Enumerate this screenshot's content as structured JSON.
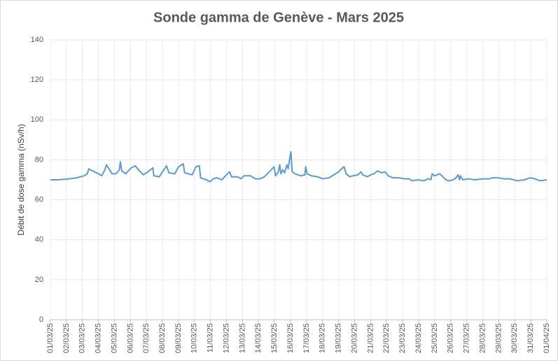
{
  "chart_data": {
    "type": "line",
    "title": "Sonde gamma de Genève - Mars 2025",
    "ylabel": "Débit de dose gamma (nSv/h)",
    "xlim": [
      0,
      31
    ],
    "xticks": [
      {
        "value": 0,
        "label": "01/03/25"
      },
      {
        "value": 1,
        "label": "02/03/25"
      },
      {
        "value": 2,
        "label": "03/03/25"
      },
      {
        "value": 3,
        "label": "04/03/25"
      },
      {
        "value": 4,
        "label": "05/03/25"
      },
      {
        "value": 5,
        "label": "06/03/25"
      },
      {
        "value": 6,
        "label": "07/03/25"
      },
      {
        "value": 7,
        "label": "08/03/25"
      },
      {
        "value": 8,
        "label": "09/03/25"
      },
      {
        "value": 9,
        "label": "10/03/25"
      },
      {
        "value": 10,
        "label": "11/03/25"
      },
      {
        "value": 11,
        "label": "12/03/25"
      },
      {
        "value": 12,
        "label": "13/03/25"
      },
      {
        "value": 13,
        "label": "14/03/25"
      },
      {
        "value": 14,
        "label": "15/03/25"
      },
      {
        "value": 15,
        "label": "16/03/25"
      },
      {
        "value": 16,
        "label": "17/03/25"
      },
      {
        "value": 17,
        "label": "18/03/25"
      },
      {
        "value": 18,
        "label": "19/03/25"
      },
      {
        "value": 19,
        "label": "20/03/25"
      },
      {
        "value": 20,
        "label": "21/03/25"
      },
      {
        "value": 21,
        "label": "22/03/25"
      },
      {
        "value": 22,
        "label": "23/03/25"
      },
      {
        "value": 23,
        "label": "24/03/25"
      },
      {
        "value": 24,
        "label": "25/03/25"
      },
      {
        "value": 25,
        "label": "26/03/25"
      },
      {
        "value": 26,
        "label": "27/03/25"
      },
      {
        "value": 27,
        "label": "28/03/25"
      },
      {
        "value": 28,
        "label": "29/03/25"
      },
      {
        "value": 29,
        "label": "30/03/25"
      },
      {
        "value": 30,
        "label": "31/03/25"
      },
      {
        "value": 31,
        "label": "01/04/25"
      }
    ],
    "ylim": [
      0,
      140
    ],
    "yticks": [
      0,
      20,
      40,
      60,
      80,
      100,
      120,
      140
    ],
    "grid": true,
    "color": "#5b9bd5",
    "x": [
      0,
      0.5,
      1.2,
      1.65,
      2.1,
      2.3,
      2.4,
      2.5,
      3,
      3.2,
      3.4,
      3.5,
      3.85,
      4.1,
      4.3,
      4.37,
      4.45,
      4.7,
      5.05,
      5.3,
      5.5,
      5.8,
      6.1,
      6.4,
      6.46,
      6.8,
      7.0,
      7.25,
      7.4,
      7.77,
      8.0,
      8.3,
      8.38,
      8.86,
      9.08,
      9.3,
      9.38,
      9.74,
      9.96,
      10.18,
      10.4,
      10.7,
      11.0,
      11.18,
      11.31,
      11.7,
      11.9,
      12.1,
      12.5,
      12.8,
      13.1,
      13.36,
      13.67,
      13.97,
      14.06,
      14.24,
      14.32,
      14.4,
      14.5,
      14.63,
      14.76,
      14.85,
      14.93,
      15.02,
      15.1,
      15.28,
      15.63,
      15.9,
      15.94,
      16.03,
      16.3,
      16.7,
      17.0,
      17.4,
      17.7,
      18.0,
      18.25,
      18.34,
      18.47,
      18.7,
      18.9,
      19.2,
      19.4,
      19.5,
      19.8,
      20.0,
      20.2,
      20.44,
      20.66,
      20.9,
      21.1,
      21.4,
      21.75,
      22.1,
      22.4,
      22.6,
      22.97,
      23.3,
      23.6,
      23.76,
      23.84,
      24.0,
      24.3,
      24.45,
      24.7,
      24.9,
      25.15,
      25.33,
      25.46,
      25.55,
      25.6,
      25.76,
      26.1,
      26.5,
      27.0,
      27.4,
      27.6,
      27.95,
      28.3,
      28.7,
      29.17,
      29.6,
      29.96,
      30.26,
      30.57,
      31.0
    ],
    "series": [
      {
        "name": "Débit de dose gamma",
        "values": [
          70,
          70,
          70.5,
          71,
          72,
          73,
          75.5,
          75,
          73,
          72,
          75,
          77.5,
          73,
          73,
          75,
          79,
          74.5,
          73,
          76,
          77,
          75,
          72.5,
          74,
          76,
          72,
          71.5,
          74,
          77,
          73.5,
          73,
          76.5,
          78,
          73.5,
          72.5,
          76.5,
          77,
          71,
          70,
          69,
          70.5,
          71,
          70,
          72.5,
          74,
          71.5,
          71.5,
          70.5,
          72,
          72,
          70.5,
          70.5,
          71.5,
          74,
          76.5,
          72,
          74,
          77.5,
          73,
          75,
          73.5,
          77.5,
          75.5,
          80,
          84,
          74,
          73,
          72,
          72.5,
          76.5,
          73,
          72,
          71.5,
          70.5,
          71,
          72.5,
          74,
          76,
          76.5,
          73,
          71.5,
          72,
          72.5,
          74,
          72.5,
          71.5,
          72.5,
          73,
          74.5,
          73.5,
          74,
          72,
          71,
          71,
          70.5,
          70.5,
          69.5,
          70,
          69.5,
          70.5,
          70,
          73,
          72,
          73,
          72,
          70,
          69.5,
          70,
          71,
          72.5,
          70,
          72,
          70,
          70.5,
          70,
          70.5,
          70.5,
          71,
          71,
          70.5,
          70.5,
          69.5,
          70,
          71,
          70.5,
          69.5,
          70
        ]
      }
    ]
  }
}
